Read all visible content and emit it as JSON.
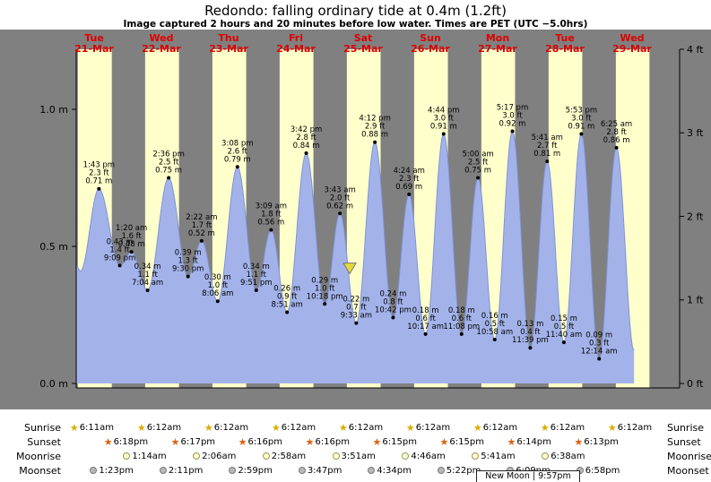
{
  "page": {
    "title": "Redondo: falling  ordinary tide at 0.4m (1.2ft)",
    "subtitle": "Image captured 2 hours and 20 minutes before low water. Times are PET (UTC −5.0hrs)"
  },
  "colors": {
    "panel": "#808080",
    "day_band": "#ffffcc",
    "tide_fill": "#a3b3ea",
    "tide_stroke": "#7e93d8",
    "day_label": "#dd0000",
    "marker": "#e4d83c",
    "axis": "#000000"
  },
  "chart_data": {
    "type": "area",
    "title": "Redondo: falling  ordinary tide at 0.4m (1.2ft)",
    "ylim_m": [
      0,
      1.22
    ],
    "grid": false,
    "days": [
      {
        "name": "Tue",
        "date": "21-Mar"
      },
      {
        "name": "Wed",
        "date": "22-Mar"
      },
      {
        "name": "Thu",
        "date": "23-Mar"
      },
      {
        "name": "Fri",
        "date": "24-Mar"
      },
      {
        "name": "Sat",
        "date": "25-Mar"
      },
      {
        "name": "Sun",
        "date": "26-Mar"
      },
      {
        "name": "Mon",
        "date": "27-Mar"
      },
      {
        "name": "Tue",
        "date": "28-Mar"
      },
      {
        "name": "Wed",
        "date": "29-Mar"
      }
    ],
    "axes": {
      "left": [
        {
          "text": "1.0 m",
          "m": 1.0
        },
        {
          "text": "0.5 m",
          "m": 0.5
        },
        {
          "text": "0.0 m",
          "m": 0.0
        }
      ],
      "right": [
        {
          "text": "4 ft",
          "ft": 4
        },
        {
          "text": "3 ft",
          "ft": 3
        },
        {
          "text": "2 ft",
          "ft": 2
        },
        {
          "text": "1 ft",
          "ft": 1
        },
        {
          "text": "0 ft",
          "ft": 0
        }
      ]
    },
    "tide_points": [
      {
        "day": 0,
        "time": "1:43 pm",
        "ft": 2.3,
        "m": 0.71,
        "type": "high"
      },
      {
        "day": 0,
        "time": "9:09 pm",
        "ft": 1.4,
        "m": 0.43,
        "type": "low"
      },
      {
        "day": 1,
        "time": "1:20 am",
        "ft": 1.6,
        "m": 0.48,
        "type": "high"
      },
      {
        "day": 1,
        "time": "7:04 am",
        "ft": 1.1,
        "m": 0.34,
        "type": "low"
      },
      {
        "day": 1,
        "time": "2:36 pm",
        "ft": 2.5,
        "m": 0.75,
        "type": "high"
      },
      {
        "day": 1,
        "time": "9:30 pm",
        "ft": 1.3,
        "m": 0.39,
        "type": "low"
      },
      {
        "day": 2,
        "time": "2:22 am",
        "ft": 1.7,
        "m": 0.52,
        "type": "high"
      },
      {
        "day": 2,
        "time": "8:06 am",
        "ft": 1.0,
        "m": 0.3,
        "type": "low"
      },
      {
        "day": 2,
        "time": "3:08 pm",
        "ft": 2.6,
        "m": 0.79,
        "type": "high"
      },
      {
        "day": 2,
        "time": "9:51 pm",
        "ft": 1.1,
        "m": 0.34,
        "type": "low"
      },
      {
        "day": 3,
        "time": "3:09 am",
        "ft": 1.8,
        "m": 0.56,
        "type": "high"
      },
      {
        "day": 3,
        "time": "8:51 am",
        "ft": 0.9,
        "m": 0.26,
        "type": "low"
      },
      {
        "day": 3,
        "time": "3:42 pm",
        "ft": 2.8,
        "m": 0.84,
        "type": "high"
      },
      {
        "day": 3,
        "time": "10:18 pm",
        "ft": 1.0,
        "m": 0.29,
        "type": "low"
      },
      {
        "day": 4,
        "time": "3:43 am",
        "ft": 2.0,
        "m": 0.62,
        "type": "high"
      },
      {
        "day": 4,
        "time": "9:33 am",
        "ft": 0.7,
        "m": 0.22,
        "type": "low"
      },
      {
        "day": 4,
        "time": "4:12 pm",
        "ft": 2.9,
        "m": 0.88,
        "type": "high"
      },
      {
        "day": 4,
        "time": "10:42 pm",
        "ft": 0.8,
        "m": 0.24,
        "type": "low"
      },
      {
        "day": 5,
        "time": "4:24 am",
        "ft": 2.3,
        "m": 0.69,
        "type": "high"
      },
      {
        "day": 5,
        "time": "10:17 am",
        "ft": 0.6,
        "m": 0.18,
        "type": "low"
      },
      {
        "day": 5,
        "time": "4:44 pm",
        "ft": 3.0,
        "m": 0.91,
        "type": "high"
      },
      {
        "day": 5,
        "time": "11:08 pm",
        "ft": 0.6,
        "m": 0.18,
        "type": "low"
      },
      {
        "day": 6,
        "time": "5:00 am",
        "ft": 2.5,
        "m": 0.75,
        "type": "high"
      },
      {
        "day": 6,
        "time": "10:58 am",
        "ft": 0.5,
        "m": 0.16,
        "type": "low"
      },
      {
        "day": 6,
        "time": "5:17 pm",
        "ft": 3.0,
        "m": 0.92,
        "type": "high"
      },
      {
        "day": 6,
        "time": "11:39 pm",
        "ft": 0.4,
        "m": 0.13,
        "type": "low"
      },
      {
        "day": 7,
        "time": "5:41 am",
        "ft": 2.7,
        "m": 0.81,
        "type": "high"
      },
      {
        "day": 7,
        "time": "11:40 am",
        "ft": 0.5,
        "m": 0.15,
        "type": "low"
      },
      {
        "day": 7,
        "time": "5:53 pm",
        "ft": 3.0,
        "m": 0.91,
        "type": "high"
      },
      {
        "day": 8,
        "time": "12:14 am",
        "ft": 0.3,
        "m": 0.09,
        "type": "low"
      },
      {
        "day": 8,
        "time": "6:25 am",
        "ft": 2.8,
        "m": 0.86,
        "type": "high"
      }
    ],
    "current_marker": {
      "day": 4,
      "time": "7:13 am",
      "m": 0.4
    }
  },
  "astro": {
    "rows": [
      {
        "key": "sunrise",
        "label": "Sunrise",
        "icon": "star",
        "icon_color": "#d8ac00",
        "entries": [
          {
            "day": 0,
            "time": "6:11am"
          },
          {
            "day": 1,
            "time": "6:12am"
          },
          {
            "day": 2,
            "time": "6:12am"
          },
          {
            "day": 3,
            "time": "6:12am"
          },
          {
            "day": 4,
            "time": "6:12am"
          },
          {
            "day": 5,
            "time": "6:12am"
          },
          {
            "day": 6,
            "time": "6:12am"
          },
          {
            "day": 7,
            "time": "6:12am"
          },
          {
            "day": 8,
            "time": "6:12am"
          }
        ]
      },
      {
        "key": "sunset",
        "label": "Sunset",
        "icon": "star",
        "icon_color": "#e06010",
        "entries": [
          {
            "day": 0,
            "time": "6:18pm"
          },
          {
            "day": 1,
            "time": "6:17pm"
          },
          {
            "day": 2,
            "time": "6:16pm"
          },
          {
            "day": 3,
            "time": "6:16pm"
          },
          {
            "day": 4,
            "time": "6:15pm"
          },
          {
            "day": 5,
            "time": "6:15pm"
          },
          {
            "day": 6,
            "time": "6:14pm"
          },
          {
            "day": 7,
            "time": "6:13pm"
          }
        ]
      },
      {
        "key": "moonrise",
        "label": "Moonrise",
        "icon": "circle",
        "icon_color": "#ffffd0",
        "icon_border": "#99994d",
        "entries": [
          {
            "day": 1,
            "time": "1:14am"
          },
          {
            "day": 2,
            "time": "2:06am"
          },
          {
            "day": 3,
            "time": "2:58am"
          },
          {
            "day": 4,
            "time": "3:51am"
          },
          {
            "day": 5,
            "time": "4:46am"
          },
          {
            "day": 6,
            "time": "5:41am"
          },
          {
            "day": 7,
            "time": "6:38am"
          }
        ]
      },
      {
        "key": "moonset",
        "label": "Moonset",
        "icon": "circle",
        "icon_color": "#b8b8b8",
        "icon_border": "#787878",
        "entries": [
          {
            "day": 0,
            "time": "1:23pm"
          },
          {
            "day": 1,
            "time": "2:11pm"
          },
          {
            "day": 2,
            "time": "2:59pm"
          },
          {
            "day": 3,
            "time": "3:47pm"
          },
          {
            "day": 4,
            "time": "4:34pm"
          },
          {
            "day": 5,
            "time": "5:22pm"
          },
          {
            "day": 6,
            "time": "6:09pm"
          },
          {
            "day": 7,
            "time": "6:58pm"
          }
        ]
      }
    ],
    "new_moon": {
      "text": "New Moon | 9:57pm"
    }
  }
}
